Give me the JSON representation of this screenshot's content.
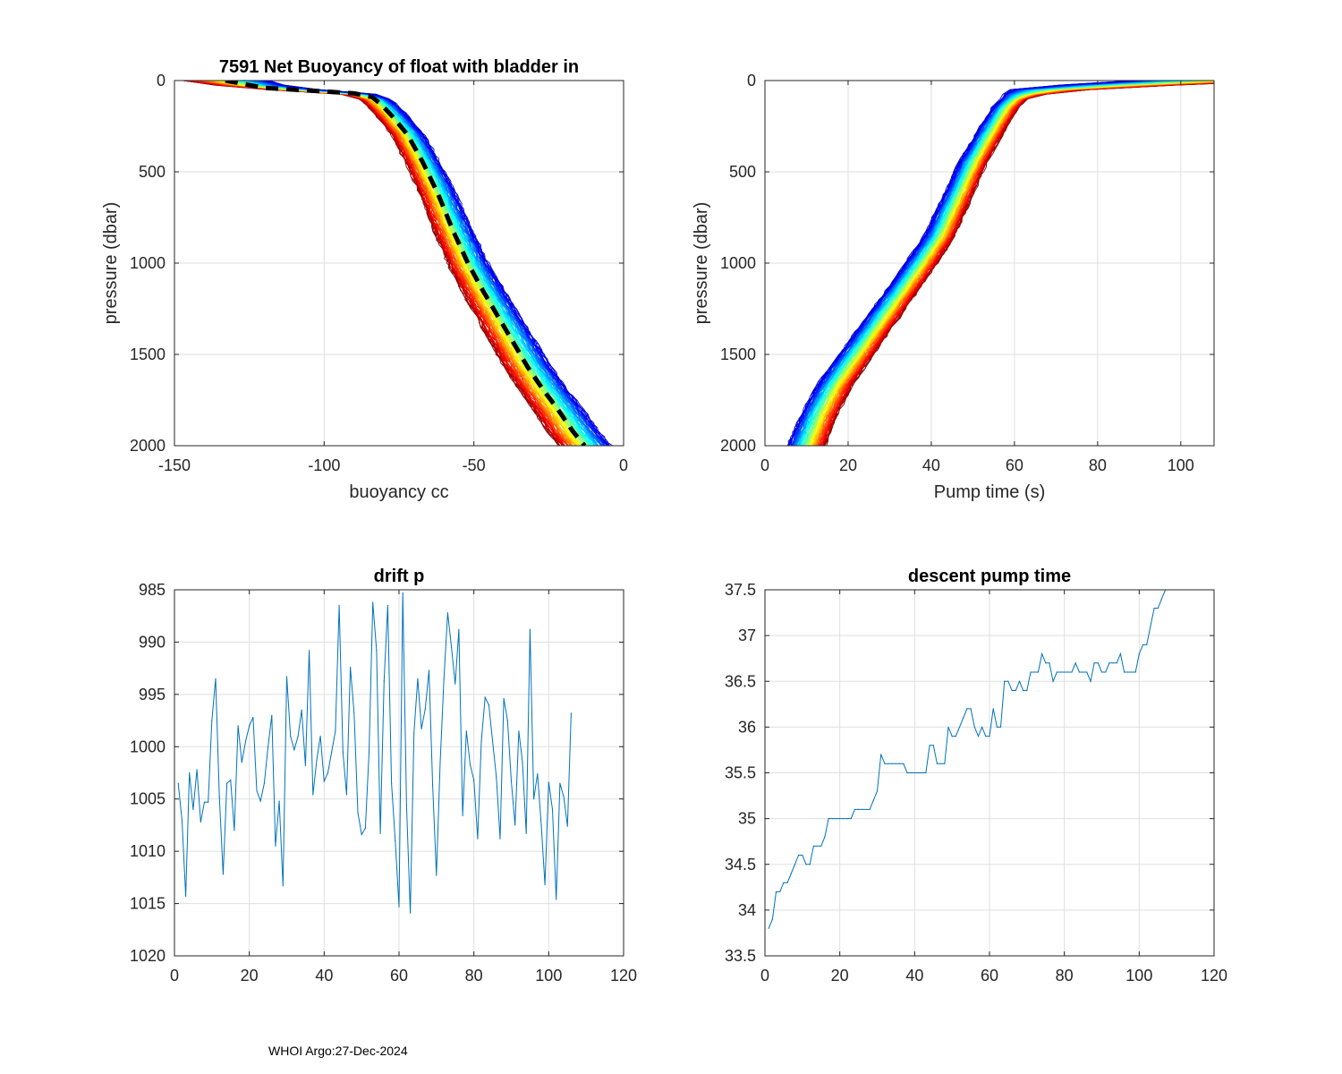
{
  "footer": "WHOI Argo:27-Dec-2024",
  "colors": {
    "series": "#0072BD",
    "axis": "#262626",
    "grid": "#dfdfdf",
    "mean": "#000000"
  },
  "chart_data": [
    {
      "id": "buoy",
      "type": "line",
      "title": "7591 Net Buoyancy of float with bladder in",
      "xlabel": "buoyancy cc",
      "ylabel": "pressure (dbar)",
      "xlim": [
        -150,
        0
      ],
      "ylim": [
        0,
        2000
      ],
      "y_reversed": true,
      "grid": true,
      "xticks": [
        -150,
        -100,
        -50,
        0
      ],
      "yticks": [
        0,
        500,
        1000,
        1500,
        2000
      ],
      "series_count": 105,
      "colormap": "jet",
      "mean_profile": {
        "name": "mean",
        "style": "dashed",
        "x": [
          -133,
          -120,
          -100,
          -90,
          -84,
          -81,
          -77,
          -72,
          -67,
          -62,
          -57,
          -52,
          -47,
          -42,
          -37,
          -32,
          -27,
          -22,
          -17,
          -13
        ],
        "y": [
          0,
          40,
          60,
          70,
          90,
          130,
          200,
          300,
          450,
          620,
          820,
          1000,
          1150,
          1290,
          1430,
          1570,
          1690,
          1800,
          1920,
          2000
        ]
      },
      "spread": {
        "shallow_min": -146,
        "shallow_max": -120,
        "deep_min": -20,
        "deep_max": -8
      }
    },
    {
      "id": "pump",
      "type": "line",
      "title": "",
      "xlabel": "Pump time (s)",
      "ylabel": "pressure (dbar)",
      "xlim": [
        0,
        108
      ],
      "ylim": [
        0,
        2000
      ],
      "y_reversed": true,
      "grid": true,
      "xticks": [
        0,
        20,
        40,
        60,
        80,
        100
      ],
      "yticks": [
        0,
        500,
        1000,
        1500,
        2000
      ],
      "series_count": 105,
      "colormap": "jet",
      "mean_profile": {
        "x": [
          107,
          100,
          85,
          70,
          63,
          60,
          58,
          55,
          50,
          46,
          42,
          37,
          32,
          27,
          22,
          17,
          13,
          10
        ],
        "y": [
          0,
          10,
          25,
          45,
          70,
          100,
          140,
          250,
          450,
          650,
          850,
          1020,
          1180,
          1340,
          1500,
          1660,
          1830,
          2000
        ]
      }
    },
    {
      "id": "drift",
      "type": "line",
      "title": "drift p",
      "xlabel": "",
      "ylabel": "",
      "xlim": [
        0,
        120
      ],
      "ylim": [
        985,
        1020
      ],
      "y_reversed": true,
      "grid": true,
      "xticks": [
        0,
        20,
        40,
        60,
        80,
        100,
        120
      ],
      "yticks": [
        985,
        990,
        995,
        1000,
        1005,
        1010,
        1015,
        1020
      ],
      "x_start": 1,
      "values": [
        1003.5,
        1007,
        1014.3,
        1002.5,
        1006,
        1002.2,
        1007.2,
        1005.3,
        1005.3,
        997.5,
        993.5,
        1004.8,
        1012.2,
        1003.5,
        1003.2,
        1008,
        998,
        1001.5,
        999.5,
        998,
        997.2,
        1004.2,
        1005.2,
        1003.5,
        1000,
        997,
        1009.5,
        1005.2,
        1013.3,
        993.3,
        999,
        1000.3,
        999,
        996.5,
        1001.8,
        990.8,
        1004.6,
        1001.3,
        999,
        1003.3,
        1002.5,
        1000.5,
        998.5,
        986.5,
        1000.5,
        1004.6,
        992.4,
        996.8,
        1006.3,
        1008.4,
        1007.8,
        1000.5,
        986.2,
        990.8,
        1008.3,
        993.7,
        986.5,
        1003.5,
        1009,
        1015.3,
        985.3,
        1005.6,
        1015.9,
        998.7,
        993.5,
        998.3,
        996.4,
        992.7,
        1003.7,
        1012.3,
        1001.5,
        993.5,
        987.2,
        990.5,
        994,
        988.8,
        1006.6,
        998.5,
        1001.7,
        1003.2,
        1008.8,
        999.5,
        995.3,
        996,
        999.5,
        1002.9,
        1008.8,
        995.4,
        997.5,
        1003.3,
        1007.5,
        998.5,
        1001.5,
        1008.3,
        988.8,
        1005,
        1002.6,
        1007.5,
        1013.2,
        1003.4,
        1006,
        1014.6,
        1003.5,
        1004.8,
        1007.6,
        996.8
      ]
    },
    {
      "id": "descent",
      "type": "line",
      "title": "descent pump time",
      "xlabel": "",
      "ylabel": "",
      "xlim": [
        0,
        120
      ],
      "ylim": [
        33.5,
        37.5
      ],
      "y_reversed": false,
      "grid": true,
      "xticks": [
        0,
        20,
        40,
        60,
        80,
        100,
        120
      ],
      "yticks": [
        33.5,
        34,
        34.5,
        35,
        35.5,
        36,
        36.5,
        37,
        37.5
      ],
      "x_start": 1,
      "values": [
        33.8,
        33.9,
        34.2,
        34.2,
        34.3,
        34.3,
        34.4,
        34.5,
        34.6,
        34.6,
        34.5,
        34.5,
        34.7,
        34.7,
        34.7,
        34.8,
        35.0,
        35.0,
        35.0,
        35.0,
        35.0,
        35.0,
        35.0,
        35.1,
        35.1,
        35.1,
        35.1,
        35.1,
        35.2,
        35.3,
        35.7,
        35.6,
        35.6,
        35.6,
        35.6,
        35.6,
        35.6,
        35.5,
        35.5,
        35.5,
        35.5,
        35.5,
        35.5,
        35.8,
        35.8,
        35.6,
        35.6,
        35.6,
        36.0,
        35.9,
        35.9,
        36.0,
        36.1,
        36.2,
        36.2,
        36.0,
        35.9,
        36.0,
        35.9,
        35.9,
        36.2,
        36.0,
        36.0,
        36.5,
        36.5,
        36.4,
        36.4,
        36.5,
        36.4,
        36.4,
        36.6,
        36.6,
        36.6,
        36.8,
        36.7,
        36.7,
        36.5,
        36.6,
        36.6,
        36.6,
        36.6,
        36.6,
        36.7,
        36.6,
        36.6,
        36.6,
        36.5,
        36.7,
        36.7,
        36.6,
        36.6,
        36.7,
        36.7,
        36.7,
        36.8,
        36.6,
        36.6,
        36.6,
        36.6,
        36.8,
        36.9,
        36.9,
        37.1,
        37.3,
        37.3,
        37.4,
        37.5
      ]
    }
  ]
}
